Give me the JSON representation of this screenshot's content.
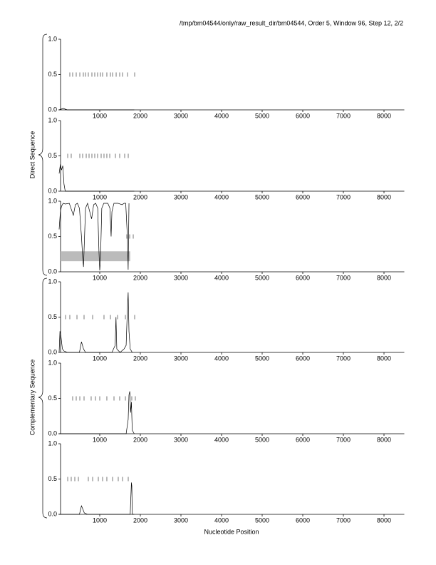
{
  "title": "/tmp/bm04544/only/raw_result_dir/bm04544, Order 5, Window 96, Step 12, 2/2",
  "xlabel": "Nucleotide Position",
  "group_labels": [
    "Direct Sequence",
    "Complementary Sequence"
  ],
  "chart_data": [
    {
      "type": "line",
      "xlim": [
        0,
        8500
      ],
      "ylim": [
        0,
        1
      ],
      "xticks": [
        1000,
        2000,
        3000,
        4000,
        5000,
        6000,
        7000,
        8000
      ],
      "yticks": [
        {
          "value": 0,
          "label": "0.0"
        },
        {
          "value": 0.5,
          "label": "0.5"
        },
        {
          "value": 1,
          "label": "1.0"
        }
      ],
      "x": [
        0,
        50,
        100,
        150,
        200,
        1850
      ],
      "values": [
        0,
        0.01,
        0.02,
        0.01,
        0,
        0
      ],
      "orf_marks": [
        263,
        333,
        421,
        509,
        596,
        649,
        719,
        807,
        877,
        947,
        1018,
        1070,
        1175,
        1263,
        1316,
        1404,
        1491,
        1561,
        1684,
        1860
      ]
    },
    {
      "type": "line",
      "xlim": [
        0,
        8500
      ],
      "ylim": [
        0,
        1
      ],
      "xticks": [
        1000,
        2000,
        3000,
        4000,
        5000,
        6000,
        7000,
        8000
      ],
      "yticks": [
        {
          "value": 0,
          "label": "0.0"
        },
        {
          "value": 0.5,
          "label": "0.5"
        },
        {
          "value": 1,
          "label": "1.0"
        }
      ],
      "x": [
        0,
        30,
        60,
        90,
        120,
        150,
        200,
        1850
      ],
      "values": [
        0.25,
        0.38,
        0.3,
        0.36,
        0.1,
        0,
        0,
        0
      ],
      "orf_marks": [
        211,
        298,
        509,
        579,
        667,
        737,
        807,
        877,
        947,
        1035,
        1105,
        1175,
        1246,
        1386,
        1491,
        1614,
        1702
      ]
    },
    {
      "type": "line",
      "xlim": [
        0,
        8500
      ],
      "ylim": [
        0,
        1
      ],
      "xticks": [
        1000,
        2000,
        3000,
        4000,
        5000,
        6000,
        7000,
        8000
      ],
      "yticks": [
        {
          "value": 0,
          "label": "0.0"
        },
        {
          "value": 0.5,
          "label": "0.5"
        },
        {
          "value": 1,
          "label": "1.0"
        }
      ],
      "x": [
        0,
        30,
        60,
        100,
        150,
        250,
        350,
        400,
        450,
        500,
        550,
        580,
        600,
        620,
        650,
        700,
        800,
        850,
        900,
        950,
        980,
        1000,
        1020,
        1050,
        1100,
        1200,
        1250,
        1280,
        1300,
        1350,
        1450,
        1550,
        1600,
        1640,
        1680,
        1700,
        1720
      ],
      "values": [
        0.6,
        0.85,
        0.93,
        0.97,
        0.96,
        0.97,
        0.8,
        0.95,
        0.97,
        0.9,
        0.5,
        0.2,
        0.07,
        0.4,
        0.9,
        0.97,
        0.75,
        0.95,
        0.97,
        0.9,
        0.3,
        0.02,
        0.2,
        0.9,
        0.97,
        0.97,
        0.9,
        0.5,
        0.85,
        0.97,
        0.97,
        0.95,
        0.97,
        0.97,
        0.5,
        0.03,
        0.97
      ],
      "orf_marks": [
        1667,
        1737,
        1825
      ],
      "region": {
        "start": 0,
        "end": 1750,
        "bottom": 0.15,
        "top": 0.29
      }
    },
    {
      "type": "line",
      "xlim": [
        0,
        8500
      ],
      "ylim": [
        0,
        1
      ],
      "xticks": [
        1000,
        2000,
        3000,
        4000,
        5000,
        6000,
        7000,
        8000
      ],
      "yticks": [
        {
          "value": 0,
          "label": "0.0"
        },
        {
          "value": 0.5,
          "label": "0.5"
        },
        {
          "value": 1,
          "label": "1.0"
        }
      ],
      "x": [
        0,
        20,
        40,
        80,
        120,
        200,
        500,
        550,
        600,
        650,
        1300,
        1380,
        1400,
        1420,
        1500,
        1600,
        1650,
        1680,
        1700,
        1720,
        1750,
        1800
      ],
      "values": [
        0,
        0.3,
        0.25,
        0.05,
        0.02,
        0,
        0,
        0.15,
        0.05,
        0,
        0,
        0.1,
        0.5,
        0.05,
        0,
        0.05,
        0.1,
        0.6,
        0.85,
        0.3,
        0.05,
        0
      ],
      "orf_marks": [
        158,
        263,
        439,
        614,
        825,
        1105,
        1263,
        1439,
        1632,
        1860
      ]
    },
    {
      "type": "line",
      "xlim": [
        0,
        8500
      ],
      "ylim": [
        0,
        1
      ],
      "xticks": [
        1000,
        2000,
        3000,
        4000,
        5000,
        6000,
        7000,
        8000
      ],
      "yticks": [
        {
          "value": 0,
          "label": "0.0"
        },
        {
          "value": 0.5,
          "label": "0.5"
        },
        {
          "value": 1,
          "label": "1.0"
        }
      ],
      "x": [
        0,
        1650,
        1700,
        1720,
        1740,
        1760,
        1780,
        1800,
        1850
      ],
      "values": [
        0,
        0,
        0.2,
        0.55,
        0.6,
        0.3,
        0.45,
        0.05,
        0
      ],
      "orf_marks": [
        333,
        421,
        509,
        614,
        789,
        895,
        1000,
        1175,
        1351,
        1491,
        1632,
        1789,
        1877
      ]
    },
    {
      "type": "line",
      "xlim": [
        0,
        8500
      ],
      "ylim": [
        0,
        1
      ],
      "xticks": [
        1000,
        2000,
        3000,
        4000,
        5000,
        6000,
        7000,
        8000
      ],
      "yticks": [
        {
          "value": 0,
          "label": "0.0"
        },
        {
          "value": 0.5,
          "label": "0.5"
        },
        {
          "value": 1,
          "label": "1.0"
        }
      ],
      "x": [
        0,
        500,
        550,
        580,
        620,
        700,
        1750,
        1780,
        1790,
        1800,
        1850
      ],
      "values": [
        0,
        0,
        0.12,
        0.08,
        0.02,
        0,
        0,
        0.45,
        0.4,
        0,
        0
      ],
      "orf_marks": [
        211,
        298,
        386,
        474,
        719,
        825,
        965,
        1070,
        1175,
        1316,
        1456,
        1561,
        1702
      ]
    }
  ]
}
